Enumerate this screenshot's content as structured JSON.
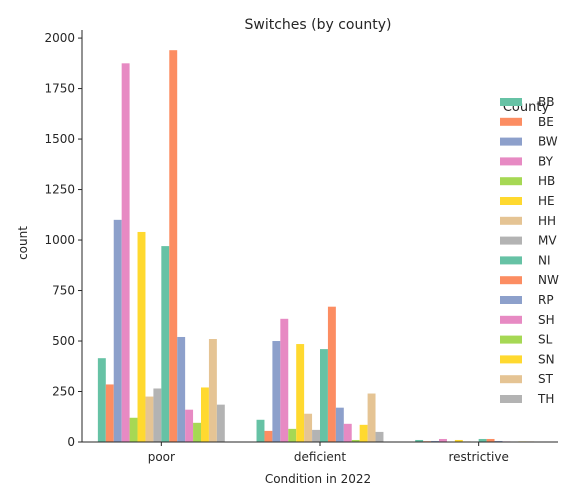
{
  "chart_data": {
    "type": "bar",
    "title": "Switches (by county)",
    "xlabel": "Condition in 2022",
    "ylabel": "count",
    "ylim": [
      0,
      2040
    ],
    "yticks": [
      0,
      250,
      500,
      750,
      1000,
      1250,
      1500,
      1750,
      2000
    ],
    "grid": false,
    "legend": {
      "title": "County",
      "placement": "right"
    },
    "categories": [
      "poor",
      "deficient",
      "restrictive"
    ],
    "series": [
      {
        "name": "BB",
        "color": "#66c2a5",
        "values": [
          415,
          110,
          10
        ]
      },
      {
        "name": "BE",
        "color": "#fc8d62",
        "values": [
          285,
          55,
          4
        ]
      },
      {
        "name": "BW",
        "color": "#8da0cb",
        "values": [
          1100,
          500,
          5
        ]
      },
      {
        "name": "BY",
        "color": "#e78ac3",
        "values": [
          1875,
          610,
          15
        ]
      },
      {
        "name": "HB",
        "color": "#a6d854",
        "values": [
          120,
          65,
          2
        ]
      },
      {
        "name": "HE",
        "color": "#ffd92f",
        "values": [
          1040,
          485,
          10
        ]
      },
      {
        "name": "HH",
        "color": "#e5c494",
        "values": [
          225,
          140,
          3
        ]
      },
      {
        "name": "MV",
        "color": "#b3b3b3",
        "values": [
          265,
          60,
          2
        ]
      },
      {
        "name": "NI",
        "color": "#66c2a5",
        "values": [
          970,
          460,
          15
        ]
      },
      {
        "name": "NW",
        "color": "#fc8d62",
        "values": [
          1940,
          670,
          15
        ]
      },
      {
        "name": "RP",
        "color": "#8da0cb",
        "values": [
          520,
          170,
          5
        ]
      },
      {
        "name": "SH",
        "color": "#e78ac3",
        "values": [
          160,
          90,
          3
        ]
      },
      {
        "name": "SL",
        "color": "#a6d854",
        "values": [
          95,
          10,
          1
        ]
      },
      {
        "name": "SN",
        "color": "#ffd92f",
        "values": [
          270,
          85,
          3
        ]
      },
      {
        "name": "ST",
        "color": "#e5c494",
        "values": [
          510,
          240,
          3
        ]
      },
      {
        "name": "TH",
        "color": "#b3b3b3",
        "values": [
          185,
          50,
          2
        ]
      }
    ]
  }
}
